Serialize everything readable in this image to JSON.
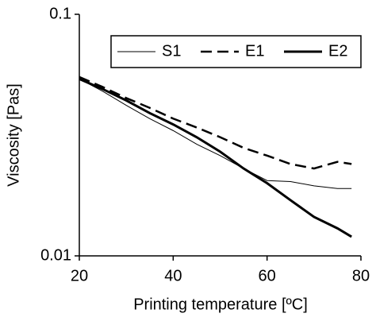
{
  "chart_data": {
    "type": "line",
    "x_label": "Printing temperature [ºC]",
    "y_label": "Viscosity [Pas]",
    "x": [
      20,
      25,
      30,
      35,
      40,
      45,
      50,
      55,
      60,
      65,
      70,
      75,
      78
    ],
    "series": [
      {
        "name": "S1",
        "color": "#000000",
        "line_style": "solid",
        "line_width": 1,
        "values": [
          0.054,
          0.048,
          0.042,
          0.037,
          0.033,
          0.029,
          0.026,
          0.023,
          0.0205,
          0.0203,
          0.0195,
          0.019,
          0.019
        ]
      },
      {
        "name": "E1",
        "color": "#000000",
        "line_style": "dashed",
        "line_width": 2.5,
        "values": [
          0.055,
          0.05,
          0.045,
          0.041,
          0.037,
          0.034,
          0.031,
          0.028,
          0.026,
          0.024,
          0.023,
          0.0245,
          0.024
        ]
      },
      {
        "name": "E2",
        "color": "#000000",
        "line_style": "solid",
        "line_width": 3,
        "values": [
          0.054,
          0.049,
          0.044,
          0.039,
          0.035,
          0.031,
          0.027,
          0.023,
          0.02,
          0.017,
          0.0145,
          0.013,
          0.012
        ]
      }
    ],
    "xlim": [
      20,
      80
    ],
    "xticks": [
      20,
      40,
      60,
      80
    ],
    "ylim": [
      0.01,
      0.1
    ],
    "yticks": [
      0.01,
      0.1
    ],
    "y_log": true,
    "legend": "top-right",
    "grid": false
  }
}
